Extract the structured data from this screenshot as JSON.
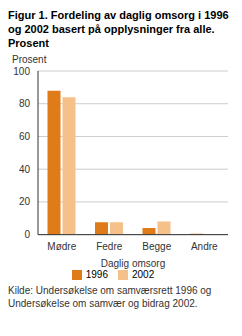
{
  "chart_data": {
    "type": "bar",
    "title": "Figur 1. Fordeling av daglig omsorg i 1996 og 2002 basert på opplysninger fra alle. Prosent",
    "y_label": "Prosent",
    "x_label": "Daglig omsorg",
    "categories": [
      "Mødre",
      "Fedre",
      "Begge",
      "Andre"
    ],
    "series": [
      {
        "name": "1996",
        "color": "#e07b1a",
        "values": [
          88,
          7.5,
          4,
          0.5
        ]
      },
      {
        "name": "2002",
        "color": "#f5c08a",
        "values": [
          84,
          7.5,
          8,
          0.3
        ]
      }
    ],
    "ylim": [
      0,
      100
    ],
    "yticks": [
      0,
      20,
      40,
      60,
      80,
      100
    ],
    "grid": true,
    "legend": "bottom",
    "source": "Kilde: Undersøkelse om samværsrett 1996 og Undersøkelse om samvær og bidrag 2002."
  }
}
